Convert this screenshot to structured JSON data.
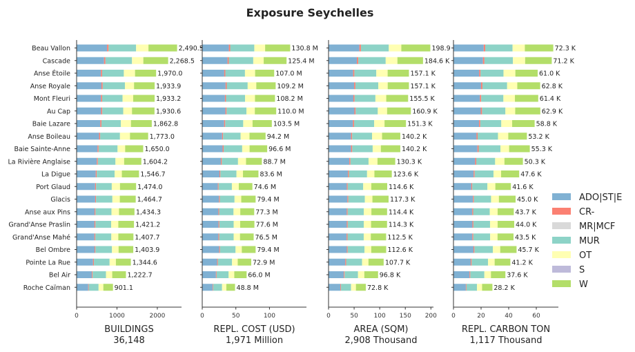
{
  "title": "Exposure Seychelles",
  "chart_data": {
    "type": "bar",
    "orientation": "horizontal",
    "stacked": true,
    "categories": [
      "Beau Vallon",
      "Cascade",
      "Anse Étoile",
      "Anse Royale",
      "Mont Fleuri",
      "Au Cap",
      "Baie Lazare",
      "Anse Boileau",
      "Baie Sainte-Anne",
      "La Rivière Anglaise",
      "La Digue",
      "Port Glaud",
      "Glacis",
      "Anse aux Pins",
      "Grand'Anse Praslin",
      "Grand'Anse Mahé",
      "Bel Ombre",
      "Pointe La Rue",
      "Bel Air",
      "Roche Caïman"
    ],
    "legend": {
      "placement": "right",
      "entries": [
        {
          "name": "ADO|ST|E",
          "color": "#80b1d3"
        },
        {
          "name": "CR-",
          "color": "#fb8072"
        },
        {
          "name": "MR|MCF",
          "color": "#d9d9d9"
        },
        {
          "name": "MUR",
          "color": "#8dd3c7"
        },
        {
          "name": "OT",
          "color": "#ffffb3"
        },
        {
          "name": "S",
          "color": "#bebada"
        },
        {
          "name": "W",
          "color": "#b3de69"
        }
      ]
    },
    "panels": [
      {
        "xlabel": "BUILDINGS",
        "total": "36,148",
        "xlim": [
          0,
          2600
        ],
        "xticks": [
          0,
          1000,
          2000
        ],
        "totals": [
          2490.5,
          2268.5,
          1970.0,
          1933.9,
          1933.2,
          1930.6,
          1862.8,
          1773.0,
          1650.0,
          1604.2,
          1546.7,
          1474.0,
          1464.7,
          1434.3,
          1421.2,
          1407.7,
          1403.9,
          1344.6,
          1222.7,
          901.1
        ],
        "labels": [
          "2,490.5",
          "2,268.5",
          "1,970.0",
          "1,933.9",
          "1,933.2",
          "1,930.6",
          "1,862.8",
          "1,773.0",
          "1,650.0",
          "1,604.2",
          "1,546.7",
          "1,474.0",
          "1,464.7",
          "1,434.3",
          "1,421.2",
          "1,407.7",
          "1,403.9",
          "1,344.6",
          "1,222.7",
          "901.1"
        ]
      },
      {
        "xlabel": "REPL. COST (USD)",
        "total": "1,971 Million",
        "xlim": [
          0,
          155
        ],
        "xticks": [
          0,
          50,
          100
        ],
        "totals": [
          130.8,
          125.4,
          107.0,
          109.2,
          108.2,
          110.0,
          103.5,
          94.2,
          96.6,
          88.7,
          83.6,
          74.6,
          79.4,
          77.3,
          77.6,
          76.5,
          79.4,
          72.9,
          66.0,
          48.8
        ],
        "labels": [
          "130.8 M",
          "125.4 M",
          "107.0 M",
          "109.2 M",
          "108.2 M",
          "110.0 M",
          "103.5 M",
          "94.2 M",
          "96.6 M",
          "88.7 M",
          "83.6 M",
          "74.6 M",
          "79.4 M",
          "77.3 M",
          "77.6 M",
          "76.5 M",
          "79.4 M",
          "72.9 M",
          "66.0 M",
          "48.8 M"
        ]
      },
      {
        "xlabel": "AREA (SQM)",
        "total": "2,908 Thousand",
        "xlim": [
          0,
          205
        ],
        "xticks": [
          0,
          50,
          100,
          150,
          200
        ],
        "totals": [
          198.9,
          184.6,
          157.1,
          157.1,
          155.5,
          160.9,
          151.3,
          140.2,
          140.2,
          130.3,
          123.6,
          114.6,
          117.3,
          114.4,
          114.3,
          112.5,
          112.6,
          107.7,
          96.8,
          72.8
        ],
        "labels": [
          "198.9 K",
          "184.6 K",
          "157.1 K",
          "157.1 K",
          "155.5 K",
          "160.9 K",
          "151.3 K",
          "140.2 K",
          "140.2 K",
          "130.3 K",
          "123.6 K",
          "114.6 K",
          "117.3 K",
          "114.4 K",
          "114.3 K",
          "112.5 K",
          "112.6 K",
          "107.7 K",
          "96.8 K",
          "72.8 K"
        ]
      },
      {
        "xlabel": "REPL. CARBON TON",
        "total": "1,117 Thousand",
        "xlim": [
          0,
          76
        ],
        "xticks": [
          0,
          20,
          40,
          60
        ],
        "totals": [
          72.3,
          71.2,
          61.0,
          62.8,
          61.4,
          62.9,
          58.8,
          53.2,
          55.3,
          50.3,
          47.6,
          41.6,
          45.0,
          43.7,
          44.0,
          43.5,
          45.7,
          41.2,
          37.6,
          28.2
        ],
        "labels": [
          "72.3 K",
          "71.2 K",
          "61.0 K",
          "62.8 K",
          "61.4 K",
          "62.9 K",
          "58.8 K",
          "53.2 K",
          "55.3 K",
          "50.3 K",
          "47.6 K",
          "41.6 K",
          "45.0 K",
          "43.7 K",
          "44.0 K",
          "43.5 K",
          "45.7 K",
          "41.2 K",
          "37.6 K",
          "28.2 K"
        ]
      }
    ],
    "segment_shares": [
      [
        0.303,
        0.015,
        0.0,
        0.274,
        0.123,
        0.0,
        0.285
      ],
      [
        0.3,
        0.015,
        0.0,
        0.29,
        0.124,
        0.0,
        0.271
      ],
      [
        0.306,
        0.015,
        0.0,
        0.273,
        0.141,
        0.0,
        0.265
      ],
      [
        0.318,
        0.016,
        0.0,
        0.285,
        0.117,
        0.0,
        0.264
      ],
      [
        0.312,
        0.015,
        0.0,
        0.262,
        0.136,
        0.0,
        0.275
      ],
      [
        0.314,
        0.015,
        0.0,
        0.269,
        0.113,
        0.0,
        0.289
      ],
      [
        0.315,
        0.015,
        0.0,
        0.259,
        0.134,
        0.0,
        0.277
      ],
      [
        0.314,
        0.015,
        0.0,
        0.277,
        0.14,
        0.0,
        0.254
      ],
      [
        0.314,
        0.016,
        0.0,
        0.285,
        0.114,
        0.0,
        0.271
      ],
      [
        0.312,
        0.016,
        0.0,
        0.272,
        0.134,
        0.0,
        0.266
      ],
      [
        0.307,
        0.015,
        0.0,
        0.287,
        0.116,
        0.0,
        0.275
      ],
      [
        0.311,
        0.016,
        0.0,
        0.264,
        0.138,
        0.0,
        0.271
      ],
      [
        0.314,
        0.015,
        0.0,
        0.276,
        0.126,
        0.0,
        0.269
      ],
      [
        0.311,
        0.015,
        0.0,
        0.276,
        0.13,
        0.0,
        0.268
      ],
      [
        0.312,
        0.016,
        0.0,
        0.274,
        0.125,
        0.0,
        0.273
      ],
      [
        0.314,
        0.016,
        0.0,
        0.281,
        0.123,
        0.0,
        0.266
      ],
      [
        0.317,
        0.015,
        0.0,
        0.292,
        0.117,
        0.0,
        0.259
      ],
      [
        0.303,
        0.016,
        0.0,
        0.289,
        0.116,
        0.0,
        0.276
      ],
      [
        0.309,
        0.015,
        0.0,
        0.271,
        0.127,
        0.0,
        0.278
      ],
      [
        0.318,
        0.016,
        0.0,
        0.27,
        0.131,
        0.0,
        0.265
      ]
    ]
  }
}
